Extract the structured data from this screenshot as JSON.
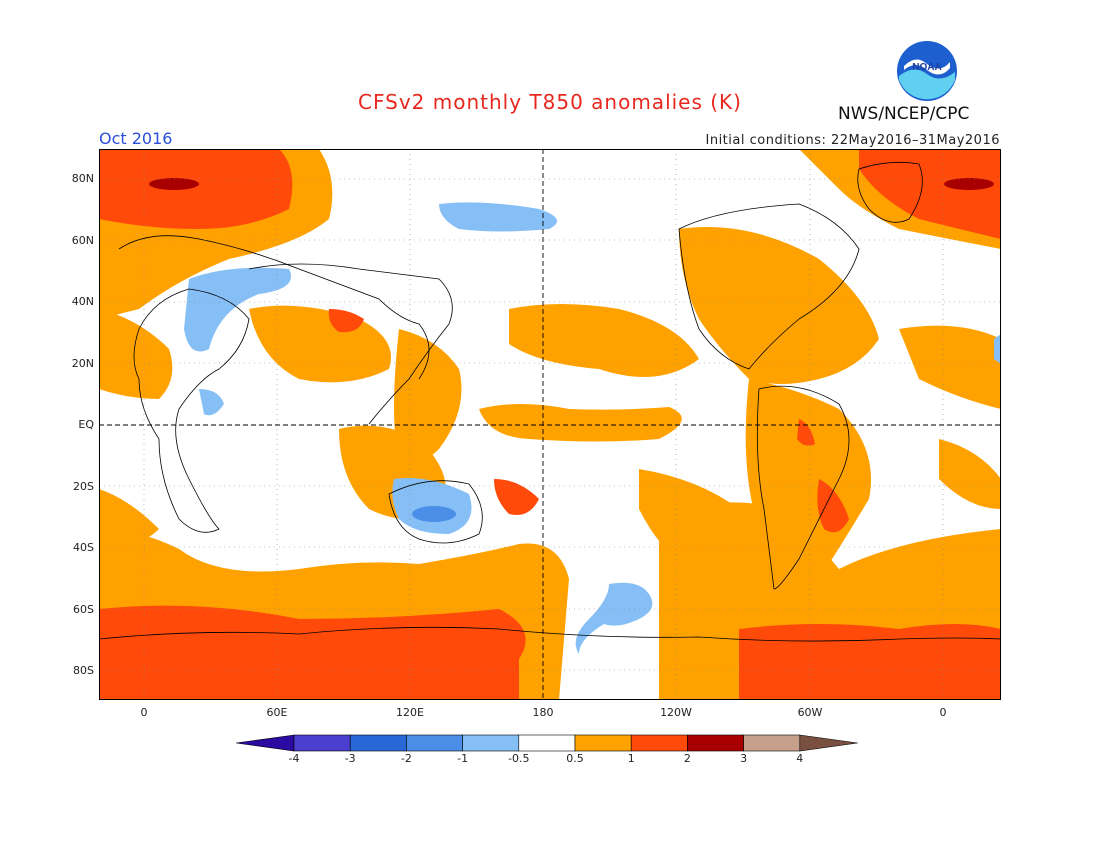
{
  "header": {
    "title": "CFSv2 monthly T850 anomalies (K)",
    "month": "Oct 2016",
    "initial_conditions": "Initial conditions: 22May2016–31May2016",
    "agency": "NWS/NCEP/CPC",
    "logo_text": "NOAA"
  },
  "map": {
    "projection": "cylindrical equidistant",
    "lat_labels": [
      "80N",
      "60N",
      "40N",
      "20N",
      "EQ",
      "20S",
      "40S",
      "60S",
      "80S"
    ],
    "lon_labels": [
      "0",
      "60E",
      "120E",
      "180",
      "120W",
      "60W",
      "0"
    ]
  },
  "legend": {
    "tick_labels": [
      "-4",
      "-3",
      "-2",
      "-1",
      "-0.5",
      "0.5",
      "1",
      "2",
      "3",
      "4"
    ],
    "colors": [
      "#2a0aa0",
      "#4a3fcf",
      "#2a67d6",
      "#4a8ee8",
      "#86bff5",
      "#ffffff",
      "#ffa200",
      "#ff4a0a",
      "#a80000",
      "#c7a08c",
      "#7a5040"
    ]
  }
}
